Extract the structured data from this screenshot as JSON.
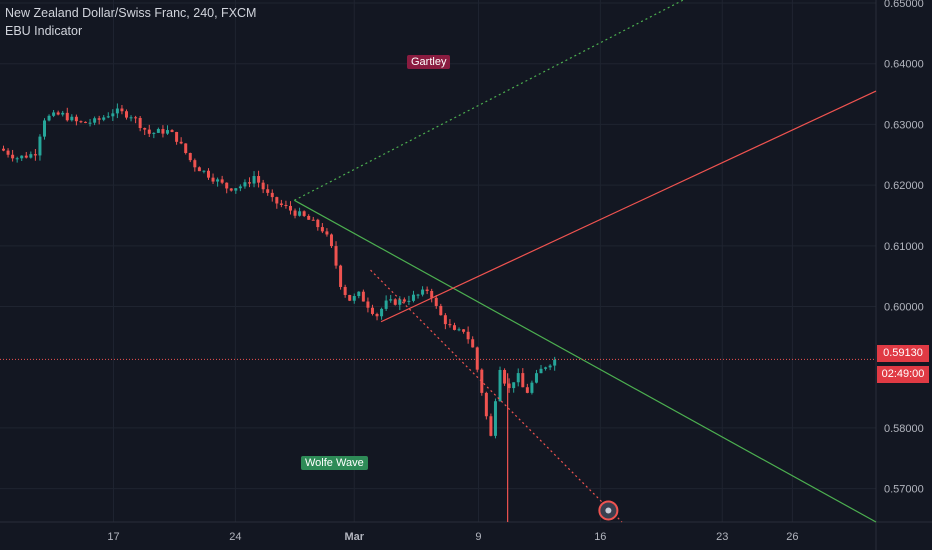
{
  "legend": {
    "symbol": "New Zealand Dollar/Swiss Franc, 240, FXCM",
    "indicator": "EBU Indicator"
  },
  "annotations": {
    "gartley": "Gartley",
    "wolfe": "Wolfe Wave"
  },
  "current_price": {
    "price": "0.59130",
    "countdown": "02:49:00"
  },
  "colors": {
    "background": "#131722",
    "grid": "#1f2430",
    "up": "#26a69a",
    "down": "#ef5350",
    "green_line": "#4caf50",
    "red_line": "#ef5350",
    "text": "#b2b5be"
  },
  "chart_data": {
    "type": "candlestick",
    "yticks": [
      "0.65000",
      "0.64000",
      "0.63000",
      "0.62000",
      "0.61000",
      "0.60000",
      "0.58000",
      "0.57000"
    ],
    "ytick_values": [
      0.65,
      0.64,
      0.63,
      0.62,
      0.61,
      0.6,
      0.58,
      0.57
    ],
    "ylim": [
      0.5645,
      0.6505
    ],
    "xticks": [
      "17",
      "24",
      "Mar",
      "9",
      "16",
      "23",
      "26"
    ],
    "xtick_positions": [
      0.1296,
      0.2687,
      0.4044,
      0.5462,
      0.6853,
      0.8245,
      0.9046
    ],
    "series": [
      {
        "name": "price",
        "trend": [
          [
            0.0,
            0.626
          ],
          [
            0.02,
            0.6245
          ],
          [
            0.04,
            0.6252
          ],
          [
            0.05,
            0.631
          ],
          [
            0.07,
            0.6317
          ],
          [
            0.09,
            0.6302
          ],
          [
            0.11,
            0.6305
          ],
          [
            0.13,
            0.6322
          ],
          [
            0.15,
            0.6315
          ],
          [
            0.17,
            0.6285
          ],
          [
            0.19,
            0.629
          ],
          [
            0.2,
            0.628
          ],
          [
            0.22,
            0.6235
          ],
          [
            0.24,
            0.6215
          ],
          [
            0.26,
            0.6195
          ],
          [
            0.28,
            0.62
          ],
          [
            0.29,
            0.6215
          ],
          [
            0.31,
            0.6175
          ],
          [
            0.33,
            0.616
          ],
          [
            0.35,
            0.6145
          ],
          [
            0.37,
            0.6125
          ],
          [
            0.38,
            0.609
          ],
          [
            0.39,
            0.603
          ],
          [
            0.4,
            0.601
          ],
          [
            0.41,
            0.602
          ],
          [
            0.43,
            0.5985
          ],
          [
            0.44,
            0.6005
          ],
          [
            0.46,
            0.601
          ],
          [
            0.48,
            0.602
          ],
          [
            0.49,
            0.603
          ],
          [
            0.5,
            0.599
          ],
          [
            0.52,
            0.5955
          ],
          [
            0.53,
            0.5962
          ],
          [
            0.54,
            0.593
          ],
          [
            0.55,
            0.586
          ],
          [
            0.56,
            0.578
          ],
          [
            0.57,
            0.5905
          ],
          [
            0.58,
            0.586
          ],
          [
            0.59,
            0.589
          ],
          [
            0.6,
            0.5855
          ],
          [
            0.61,
            0.588
          ],
          [
            0.62,
            0.59
          ],
          [
            0.63,
            0.591
          ],
          [
            0.635,
            0.5913
          ]
        ]
      }
    ],
    "lines": [
      {
        "name": "wolfe-1-4",
        "from": [
          0.336,
          0.6175
        ],
        "to": [
          1.0,
          0.5645
        ],
        "color": "green",
        "style": "solid"
      },
      {
        "name": "wolfe-target",
        "from": [
          0.336,
          0.6175
        ],
        "to": [
          0.78,
          0.6505
        ],
        "color": "green",
        "style": "dotted"
      },
      {
        "name": "gartley-extension",
        "from": [
          0.435,
          0.5975
        ],
        "to": [
          1.0,
          0.6355
        ],
        "color": "red",
        "style": "solid"
      },
      {
        "name": "wolfe-1-3",
        "from": [
          0.423,
          0.606
        ],
        "to": [
          0.71,
          0.5645
        ],
        "color": "red",
        "style": "dotted"
      }
    ],
    "current_line": 0.5913
  }
}
